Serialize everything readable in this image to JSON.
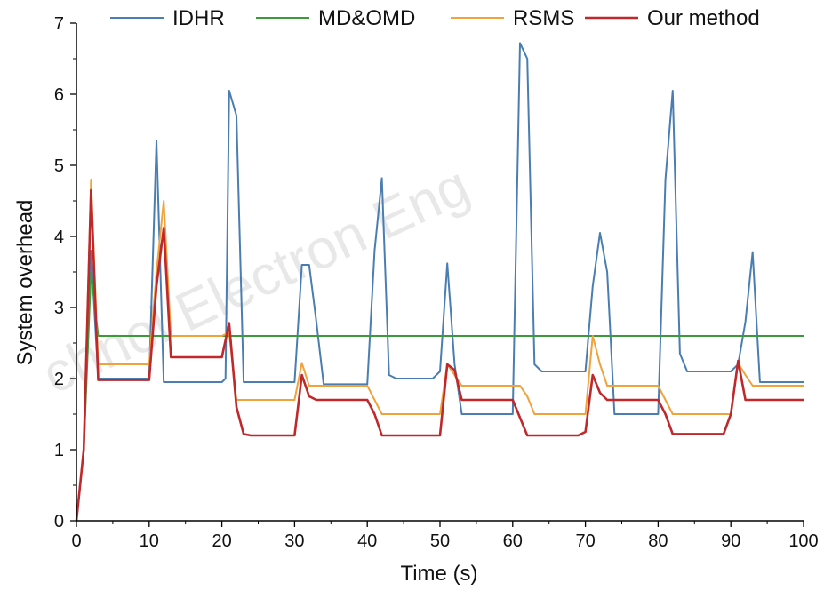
{
  "chart_data": {
    "type": "line",
    "xlabel": "Time (s)",
    "ylabel": "System overhead",
    "xlim": [
      0,
      100
    ],
    "ylim": [
      0,
      7
    ],
    "x_ticks": [
      "0",
      "10",
      "20",
      "30",
      "40",
      "50",
      "60",
      "70",
      "80",
      "90",
      "100"
    ],
    "y_ticks": [
      "0",
      "1",
      "2",
      "3",
      "4",
      "5",
      "6",
      "7"
    ],
    "grid": false,
    "legend_position": "top",
    "watermark": "chnol Electron Eng",
    "series": [
      {
        "name": "IDHR",
        "color": "#4a7eb0",
        "points": [
          [
            0,
            0
          ],
          [
            1,
            1.0
          ],
          [
            2,
            3.8
          ],
          [
            3,
            2.0
          ],
          [
            10,
            2.0
          ],
          [
            11,
            5.35
          ],
          [
            12,
            1.95
          ],
          [
            20,
            1.95
          ],
          [
            20.5,
            2.0
          ],
          [
            21,
            6.05
          ],
          [
            22,
            5.7
          ],
          [
            23,
            1.95
          ],
          [
            30,
            1.95
          ],
          [
            31,
            3.6
          ],
          [
            32,
            3.6
          ],
          [
            33,
            2.8
          ],
          [
            34,
            1.92
          ],
          [
            40,
            1.92
          ],
          [
            41,
            3.8
          ],
          [
            42,
            4.82
          ],
          [
            43,
            2.05
          ],
          [
            44,
            2.0
          ],
          [
            49,
            2.0
          ],
          [
            50,
            2.1
          ],
          [
            51,
            3.62
          ],
          [
            52,
            2.2
          ],
          [
            53,
            1.5
          ],
          [
            60,
            1.5
          ],
          [
            61,
            6.72
          ],
          [
            62,
            6.5
          ],
          [
            63,
            2.2
          ],
          [
            64,
            2.1
          ],
          [
            70,
            2.1
          ],
          [
            71,
            3.3
          ],
          [
            72,
            4.05
          ],
          [
            73,
            3.5
          ],
          [
            74,
            1.5
          ],
          [
            80,
            1.5
          ],
          [
            81,
            4.8
          ],
          [
            82,
            6.05
          ],
          [
            83,
            2.35
          ],
          [
            84,
            2.1
          ],
          [
            89,
            2.1
          ],
          [
            90,
            2.1
          ],
          [
            91,
            2.2
          ],
          [
            92,
            2.8
          ],
          [
            93,
            3.78
          ],
          [
            94,
            1.95
          ],
          [
            100,
            1.95
          ]
        ]
      },
      {
        "name": "MD&OMD",
        "color": "#3c9a3c",
        "points": [
          [
            0,
            0
          ],
          [
            1,
            1.0
          ],
          [
            2,
            3.5
          ],
          [
            3,
            2.6
          ],
          [
            100,
            2.6
          ]
        ]
      },
      {
        "name": "RSMS",
        "color": "#f0a23c",
        "points": [
          [
            0,
            0
          ],
          [
            1,
            1.0
          ],
          [
            2,
            4.8
          ],
          [
            3,
            2.2
          ],
          [
            10,
            2.2
          ],
          [
            11,
            3.5
          ],
          [
            12,
            4.5
          ],
          [
            13,
            2.6
          ],
          [
            20,
            2.6
          ],
          [
            21,
            2.65
          ],
          [
            22,
            1.7
          ],
          [
            30,
            1.7
          ],
          [
            31,
            2.22
          ],
          [
            32,
            1.9
          ],
          [
            40,
            1.9
          ],
          [
            41,
            1.7
          ],
          [
            42,
            1.5
          ],
          [
            50,
            1.5
          ],
          [
            51,
            2.2
          ],
          [
            52,
            2.05
          ],
          [
            53,
            1.9
          ],
          [
            60,
            1.9
          ],
          [
            61,
            1.9
          ],
          [
            62,
            1.75
          ],
          [
            63,
            1.5
          ],
          [
            70,
            1.5
          ],
          [
            71,
            2.6
          ],
          [
            72,
            2.2
          ],
          [
            73,
            1.9
          ],
          [
            80,
            1.9
          ],
          [
            81,
            1.7
          ],
          [
            82,
            1.5
          ],
          [
            90,
            1.5
          ],
          [
            91,
            2.22
          ],
          [
            92,
            2.05
          ],
          [
            93,
            1.9
          ],
          [
            100,
            1.9
          ]
        ]
      },
      {
        "name": "Our method",
        "color": "#c0282b",
        "points": [
          [
            0,
            0
          ],
          [
            1,
            1.0
          ],
          [
            2,
            4.65
          ],
          [
            3,
            1.98
          ],
          [
            10,
            1.98
          ],
          [
            11,
            3.3
          ],
          [
            12,
            4.12
          ],
          [
            13,
            2.3
          ],
          [
            20,
            2.3
          ],
          [
            21,
            2.78
          ],
          [
            22,
            1.6
          ],
          [
            23,
            1.22
          ],
          [
            24,
            1.2
          ],
          [
            30,
            1.2
          ],
          [
            31,
            2.05
          ],
          [
            32,
            1.75
          ],
          [
            33,
            1.7
          ],
          [
            40,
            1.7
          ],
          [
            41,
            1.5
          ],
          [
            42,
            1.2
          ],
          [
            50,
            1.2
          ],
          [
            51,
            2.2
          ],
          [
            52,
            2.12
          ],
          [
            53,
            1.7
          ],
          [
            60,
            1.7
          ],
          [
            61,
            1.45
          ],
          [
            62,
            1.2
          ],
          [
            69,
            1.2
          ],
          [
            70,
            1.25
          ],
          [
            71,
            2.05
          ],
          [
            72,
            1.8
          ],
          [
            73,
            1.7
          ],
          [
            80,
            1.7
          ],
          [
            81,
            1.5
          ],
          [
            82,
            1.22
          ],
          [
            89,
            1.22
          ],
          [
            90,
            1.5
          ],
          [
            91,
            2.25
          ],
          [
            92,
            1.7
          ],
          [
            100,
            1.7
          ]
        ]
      }
    ]
  }
}
